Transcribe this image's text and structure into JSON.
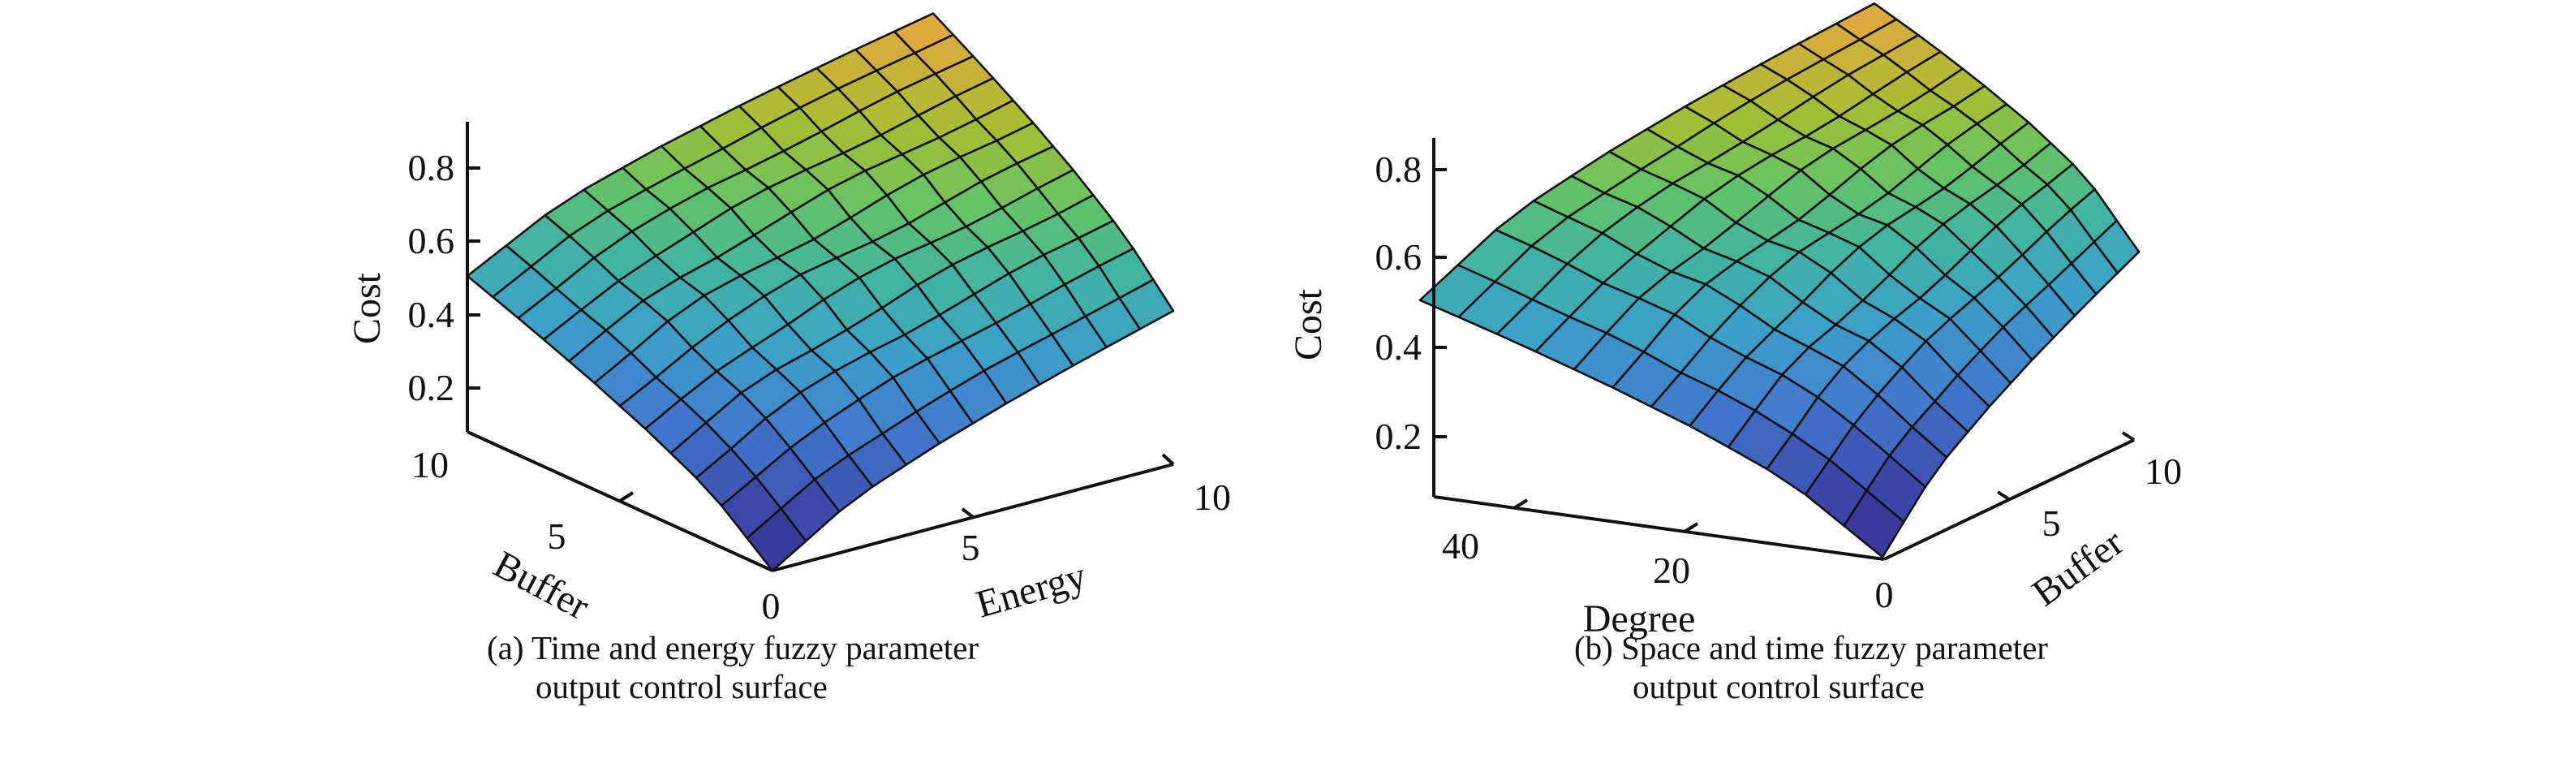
{
  "chart_data": [
    {
      "type": "surface",
      "caption_line1": "(a) Time and energy fuzzy parameter",
      "caption_line2": "output control surface",
      "xlabel": "Energy",
      "ylabel": "Buffer",
      "zlabel": "Cost",
      "x_ticks": [
        "5",
        "10"
      ],
      "y_ticks": [
        "0",
        "5",
        "10"
      ],
      "z_ticks": [
        "0.2",
        "0.4",
        "0.6",
        "0.8"
      ],
      "xlim": [
        0,
        10
      ],
      "ylim": [
        0,
        10
      ],
      "zlim": [
        0.08,
        0.93
      ],
      "grid_x": [
        0,
        2,
        4,
        6,
        8,
        10
      ],
      "grid_y": [
        0,
        2,
        4,
        6,
        8,
        10
      ],
      "z_rows_by_y": [
        [
          0.08,
          0.216,
          0.301,
          0.374,
          0.439,
          0.5
        ],
        [
          0.216,
          0.351,
          0.435,
          0.507,
          0.572,
          0.632
        ],
        [
          0.301,
          0.439,
          0.526,
          0.599,
          0.666,
          0.727
        ],
        [
          0.374,
          0.515,
          0.603,
          0.678,
          0.746,
          0.809
        ],
        [
          0.439,
          0.582,
          0.672,
          0.748,
          0.818,
          0.882
        ],
        [
          0.5,
          0.646,
          0.737,
          0.815,
          0.885,
          0.95
        ]
      ],
      "colormap": "parula"
    },
    {
      "type": "surface",
      "caption_line1": "(b) Space and time fuzzy parameter",
      "caption_line2": "output control surface",
      "xlabel": "Buffer",
      "ylabel": "Degree",
      "zlabel": "Cost",
      "x_ticks": [
        "5",
        "10"
      ],
      "y_ticks": [
        "0",
        "20",
        "40"
      ],
      "z_ticks": [
        "0.2",
        "0.4",
        "0.6",
        "0.8"
      ],
      "xlim": [
        0,
        10
      ],
      "ylim": [
        0,
        45
      ],
      "zlim": [
        0.065,
        0.93
      ],
      "grid_x": [
        0,
        2,
        4,
        6,
        8,
        10
      ],
      "grid_y": [
        0,
        9,
        18,
        27,
        36,
        45
      ],
      "z_rows_by_y": [
        [
          0.07,
          0.206,
          0.291,
          0.364,
          0.429,
          0.49
        ],
        [
          0.209,
          0.348,
          0.435,
          0.509,
          0.576,
          0.639
        ],
        [
          0.297,
          0.438,
          0.527,
          0.602,
          0.67,
          0.733
        ],
        [
          0.371,
          0.514,
          0.603,
          0.679,
          0.748,
          0.812
        ],
        [
          0.438,
          0.582,
          0.673,
          0.75,
          0.819,
          0.884
        ],
        [
          0.5,
          0.646,
          0.737,
          0.815,
          0.885,
          0.95
        ]
      ],
      "colormap": "parula"
    }
  ]
}
